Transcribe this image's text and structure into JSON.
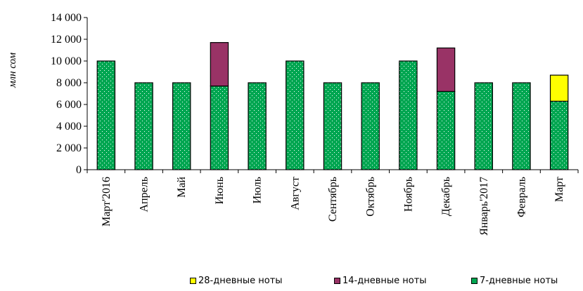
{
  "chart_data": {
    "type": "bar",
    "stacked": true,
    "ylabel": "млн сом",
    "ylim": [
      0,
      14000
    ],
    "yticks": [
      0,
      2000,
      4000,
      6000,
      8000,
      10000,
      12000,
      14000
    ],
    "ytick_labels": [
      "0",
      "2 000",
      "4 000",
      "6 000",
      "8 000",
      "10 000",
      "12 000",
      "14 000"
    ],
    "categories": [
      "Март'2016",
      "Апрель",
      "Май",
      "Июнь",
      "Июль",
      "Август",
      "Сентябрь",
      "Октябрь",
      "Ноябрь",
      "Декабрь",
      "Январь'2017",
      "Февраль",
      "Март"
    ],
    "series": [
      {
        "name": "7-дневные ноты",
        "color": "#00a651",
        "values": [
          10000,
          8000,
          8000,
          7700,
          8000,
          10000,
          8000,
          8000,
          10000,
          7200,
          8000,
          8000,
          6300
        ]
      },
      {
        "name": "14-дневные ноты",
        "color": "#993366",
        "values": [
          0,
          0,
          0,
          4000,
          0,
          0,
          0,
          0,
          0,
          4000,
          0,
          0,
          0
        ]
      },
      {
        "name": "28-дневные ноты",
        "color": "#ffff00",
        "values": [
          0,
          0,
          0,
          0,
          0,
          0,
          0,
          0,
          0,
          0,
          0,
          0,
          2400
        ]
      }
    ],
    "legend": [
      "28-дневные ноты",
      "14-дневные ноты",
      "7-дневные ноты"
    ],
    "legend_position": "bottom",
    "grid": false
  }
}
